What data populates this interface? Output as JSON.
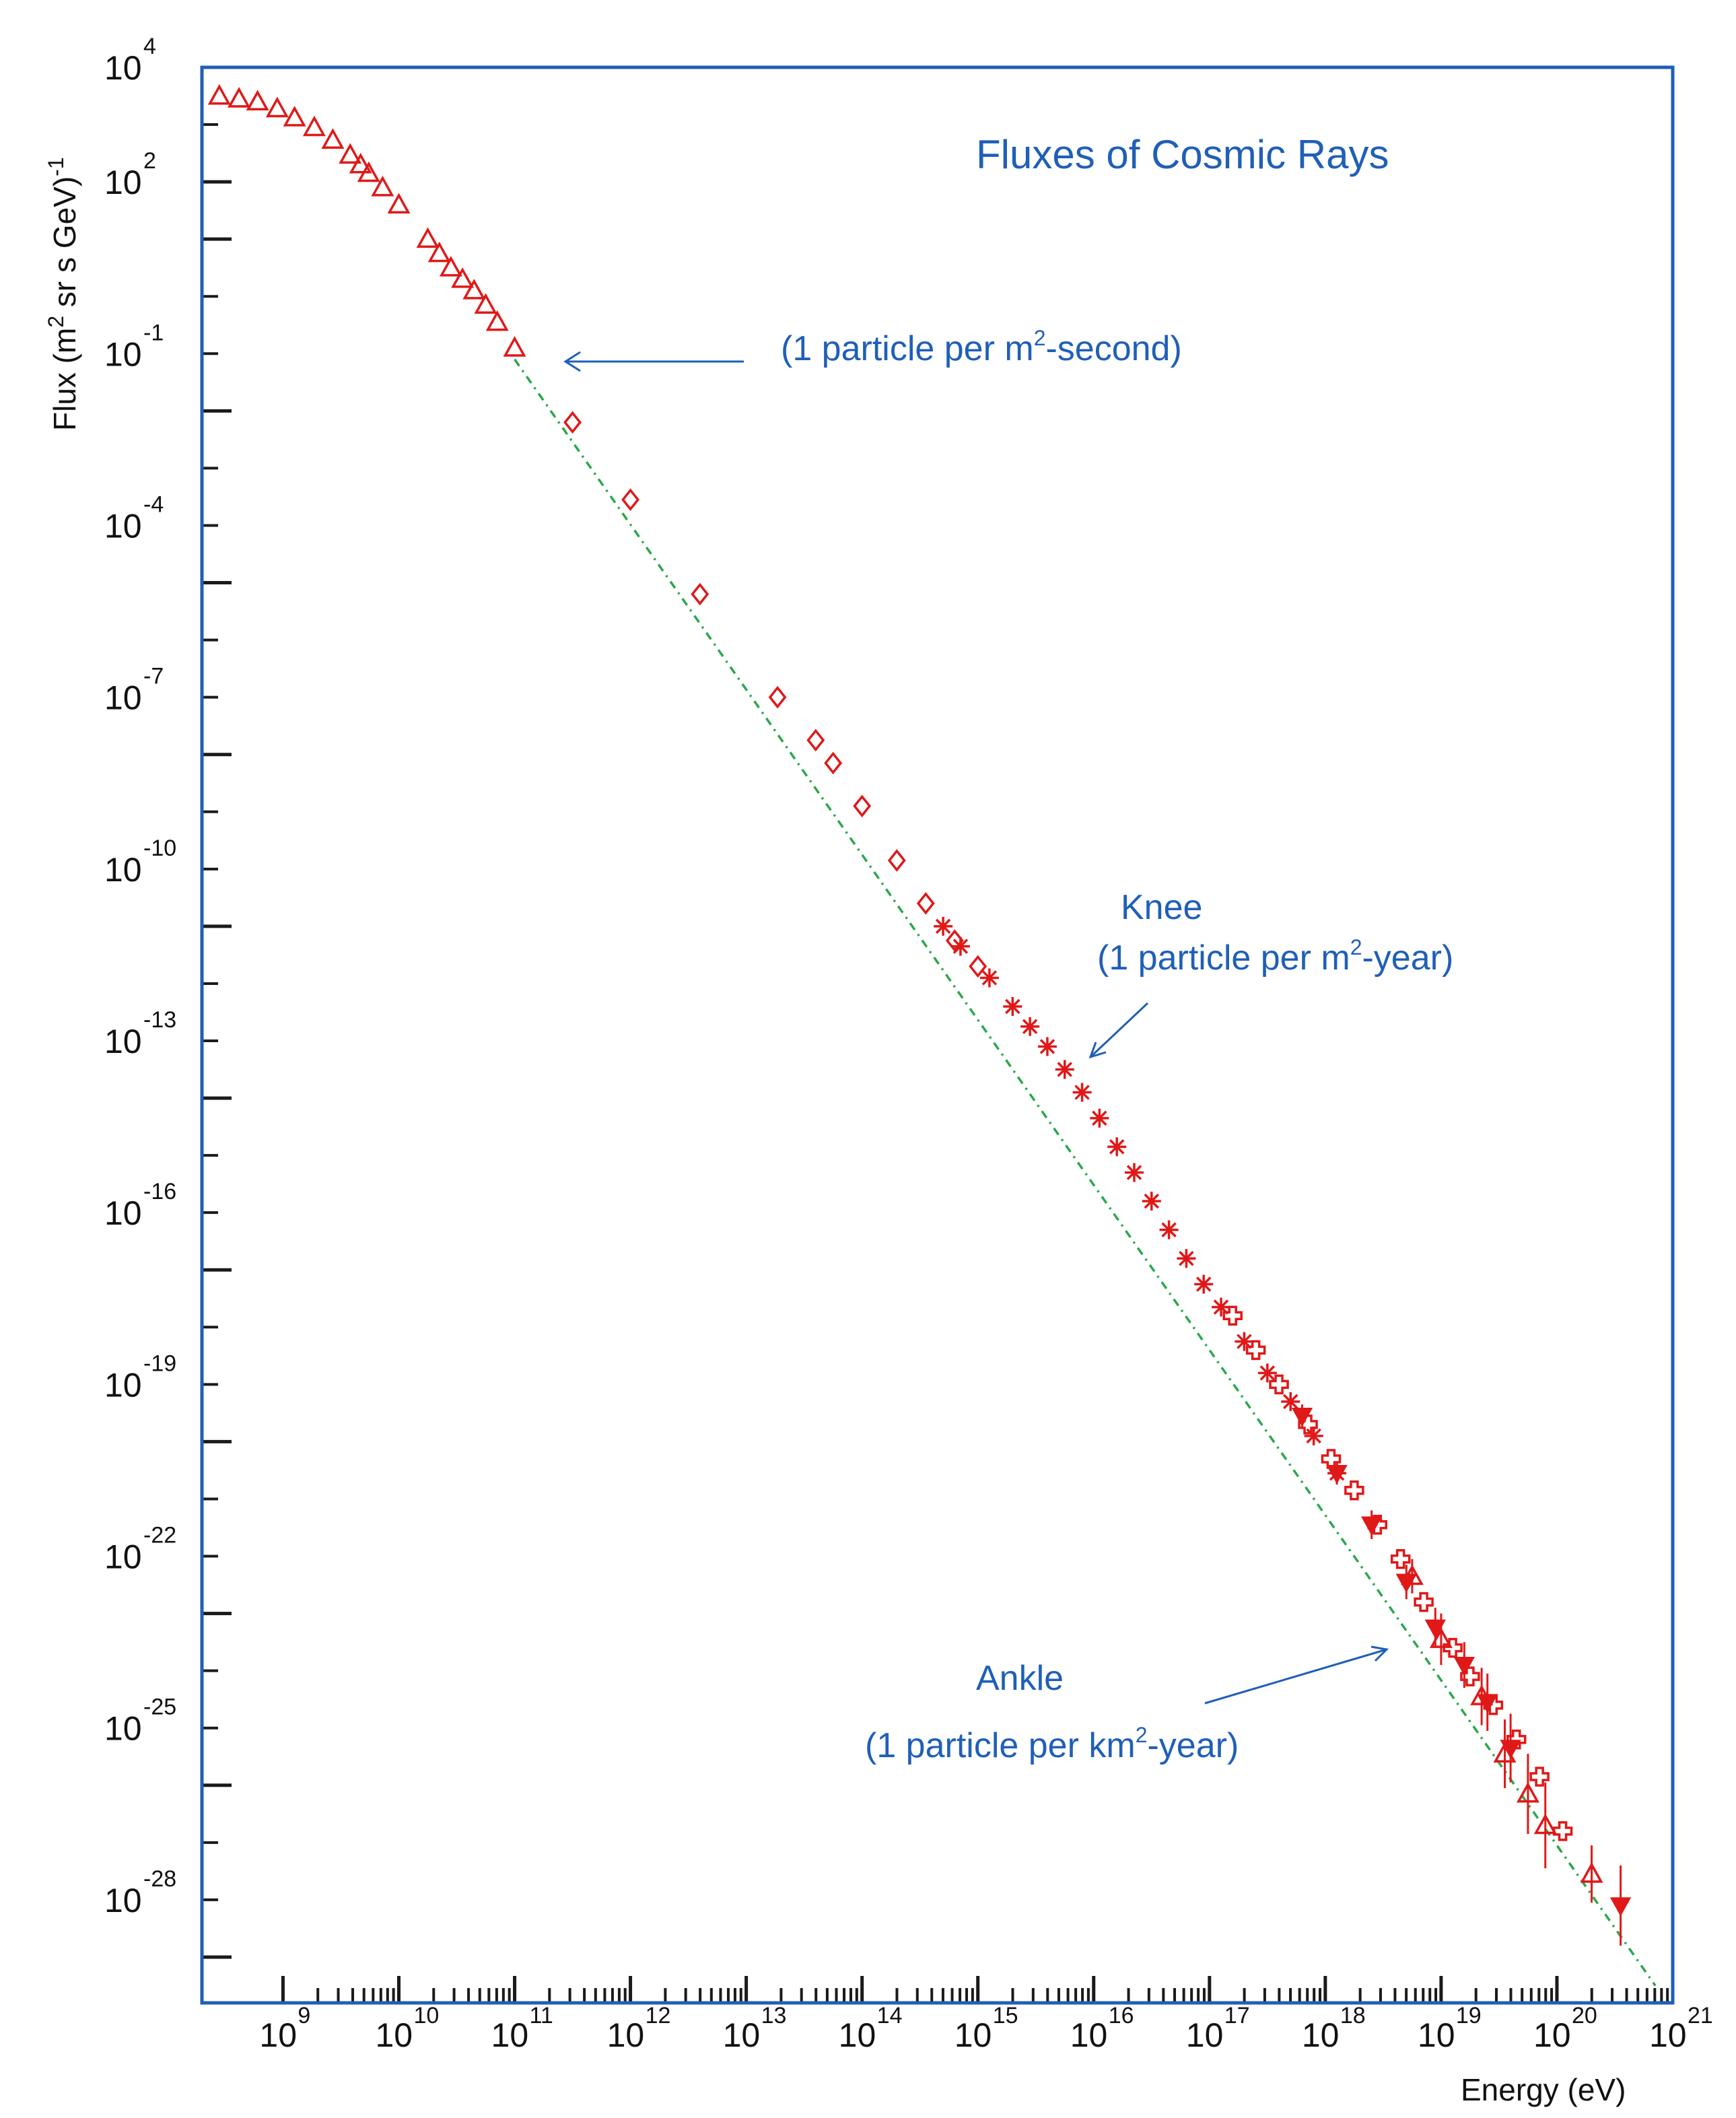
{
  "chart_data": {
    "type": "scatter",
    "title": "Fluxes of Cosmic Rays",
    "xlabel": "Energy (eV)",
    "ylabel_parts": {
      "base": "Flux (m",
      "sup": "2",
      "rest": " sr s GeV)",
      "sup2": "-1"
    },
    "xscale": "log",
    "yscale": "log",
    "xlim_log10": [
      8.3,
      21.0
    ],
    "ylim_log10": [
      -29.8,
      4.0
    ],
    "x_tick_labels": [
      {
        "base": "10",
        "exp": "9",
        "log": 9
      },
      {
        "base": "10",
        "exp": "10",
        "log": 10
      },
      {
        "base": "10",
        "exp": "11",
        "log": 11
      },
      {
        "base": "10",
        "exp": "12",
        "log": 12
      },
      {
        "base": "10",
        "exp": "13",
        "log": 13
      },
      {
        "base": "10",
        "exp": "14",
        "log": 14
      },
      {
        "base": "10",
        "exp": "15",
        "log": 15
      },
      {
        "base": "10",
        "exp": "16",
        "log": 16
      },
      {
        "base": "10",
        "exp": "17",
        "log": 17
      },
      {
        "base": "10",
        "exp": "18",
        "log": 18
      },
      {
        "base": "10",
        "exp": "19",
        "log": 19
      },
      {
        "base": "10",
        "exp": "20",
        "log": 20
      },
      {
        "base": "10",
        "exp": "21",
        "log": 21
      }
    ],
    "y_tick_labels": [
      {
        "base": "10",
        "exp": "4",
        "log": 4
      },
      {
        "base": "10",
        "exp": "2",
        "log": 2
      },
      {
        "base": "10",
        "exp": "-1",
        "log": -1
      },
      {
        "base": "10",
        "exp": "-4",
        "log": -4
      },
      {
        "base": "10",
        "exp": "-7",
        "log": -7
      },
      {
        "base": "10",
        "exp": "-10",
        "log": -10
      },
      {
        "base": "10",
        "exp": "-13",
        "log": -13
      },
      {
        "base": "10",
        "exp": "-16",
        "log": -16
      },
      {
        "base": "10",
        "exp": "-19",
        "log": -19
      },
      {
        "base": "10",
        "exp": "-22",
        "log": -22
      },
      {
        "base": "10",
        "exp": "-25",
        "log": -25
      },
      {
        "base": "10",
        "exp": "-28",
        "log": -28
      }
    ],
    "fit_line_log10": [
      [
        11.0,
        -1.1
      ],
      [
        20.85,
        -29.5
      ]
    ],
    "series": [
      {
        "marker": "triangle",
        "points_log10": [
          [
            8.45,
            3.5
          ],
          [
            8.62,
            3.45
          ],
          [
            8.78,
            3.4
          ],
          [
            8.95,
            3.28
          ],
          [
            9.1,
            3.12
          ],
          [
            9.27,
            2.95
          ],
          [
            9.43,
            2.73
          ],
          [
            9.58,
            2.47
          ],
          [
            9.67,
            2.3
          ],
          [
            9.74,
            2.15
          ],
          [
            9.86,
            1.9
          ],
          [
            10.0,
            1.6
          ],
          [
            10.25,
            1.0
          ],
          [
            10.35,
            0.75
          ],
          [
            10.45,
            0.5
          ],
          [
            10.55,
            0.3
          ],
          [
            10.65,
            0.1
          ],
          [
            10.75,
            -0.15
          ],
          [
            10.85,
            -0.45
          ],
          [
            11.0,
            -0.9
          ]
        ]
      },
      {
        "marker": "diamond",
        "points_log10": [
          [
            11.5,
            -2.2
          ],
          [
            12.0,
            -3.55
          ],
          [
            12.6,
            -5.2
          ],
          [
            13.27,
            -7.0
          ],
          [
            13.6,
            -7.75
          ],
          [
            13.75,
            -8.15
          ],
          [
            14.0,
            -8.9
          ],
          [
            14.3,
            -9.85
          ],
          [
            14.55,
            -10.6
          ],
          [
            14.8,
            -11.25
          ],
          [
            15.0,
            -11.7
          ]
        ]
      },
      {
        "marker": "asterisk",
        "points_log10": [
          [
            14.7,
            -11.0
          ],
          [
            14.85,
            -11.35
          ],
          [
            15.1,
            -11.9
          ],
          [
            15.3,
            -12.4
          ],
          [
            15.45,
            -12.75
          ],
          [
            15.6,
            -13.1
          ],
          [
            15.75,
            -13.5
          ],
          [
            15.9,
            -13.9
          ],
          [
            16.05,
            -14.35
          ],
          [
            16.2,
            -14.85
          ],
          [
            16.35,
            -15.3
          ],
          [
            16.5,
            -15.8
          ],
          [
            16.65,
            -16.3
          ],
          [
            16.8,
            -16.8
          ],
          [
            16.95,
            -17.25
          ],
          [
            17.1,
            -17.65
          ],
          [
            17.3,
            -18.25
          ],
          [
            17.5,
            -18.8
          ],
          [
            17.7,
            -19.3
          ],
          [
            17.9,
            -19.9
          ],
          [
            18.1,
            -20.55
          ]
        ]
      },
      {
        "marker": "cross",
        "points_log10": [
          [
            17.2,
            -17.8
          ],
          [
            17.4,
            -18.4
          ],
          [
            17.6,
            -19.0
          ],
          [
            17.85,
            -19.7
          ],
          [
            18.05,
            -20.3
          ],
          [
            18.25,
            -20.85
          ],
          [
            18.45,
            -21.45
          ],
          [
            18.65,
            -22.05
          ],
          [
            18.85,
            -22.8
          ],
          [
            19.1,
            -23.6
          ],
          [
            19.25,
            -24.1
          ],
          [
            19.45,
            -24.6
          ],
          [
            19.65,
            -25.2
          ],
          [
            19.85,
            -25.85
          ],
          [
            20.05,
            -26.8
          ]
        ]
      },
      {
        "marker": "filled-triangle-down",
        "points_log10": [
          [
            17.8,
            -19.55
          ],
          [
            18.1,
            -20.55
          ],
          [
            18.4,
            -21.45
          ],
          [
            18.7,
            -22.45
          ],
          [
            18.95,
            -23.25
          ],
          [
            19.2,
            -23.9
          ],
          [
            19.4,
            -24.55
          ],
          [
            19.6,
            -25.35
          ],
          [
            20.55,
            -28.1
          ]
        ],
        "errors_log10": [
          0.2,
          0.2,
          0.25,
          0.3,
          0.35,
          0.4,
          0.5,
          0.6,
          0.7
        ]
      },
      {
        "marker": "triangle-err",
        "points_log10": [
          [
            18.75,
            -22.35
          ],
          [
            19.0,
            -23.45
          ],
          [
            19.35,
            -24.45
          ],
          [
            19.55,
            -25.45
          ],
          [
            19.75,
            -26.15
          ],
          [
            19.9,
            -26.7
          ],
          [
            20.3,
            -27.55
          ]
        ],
        "errors_log10": [
          0.3,
          0.45,
          0.5,
          0.6,
          0.7,
          0.75,
          0.5
        ]
      }
    ],
    "annotations": [
      {
        "text": "(1 particle per m",
        "sup": "2",
        "tail": "-second)",
        "target_log10": [
          11.4,
          -1.0
        ]
      },
      {
        "text": "Knee",
        "line2": "(1 particle per m",
        "sup": "2",
        "tail": "-year)",
        "target_log10": [
          15.7,
          -13.9
        ]
      },
      {
        "text": "Ankle",
        "line2": "(1 particle per km",
        "sup": "2",
        "tail": "-year)",
        "target_log10": [
          18.6,
          -24.0
        ]
      }
    ]
  }
}
